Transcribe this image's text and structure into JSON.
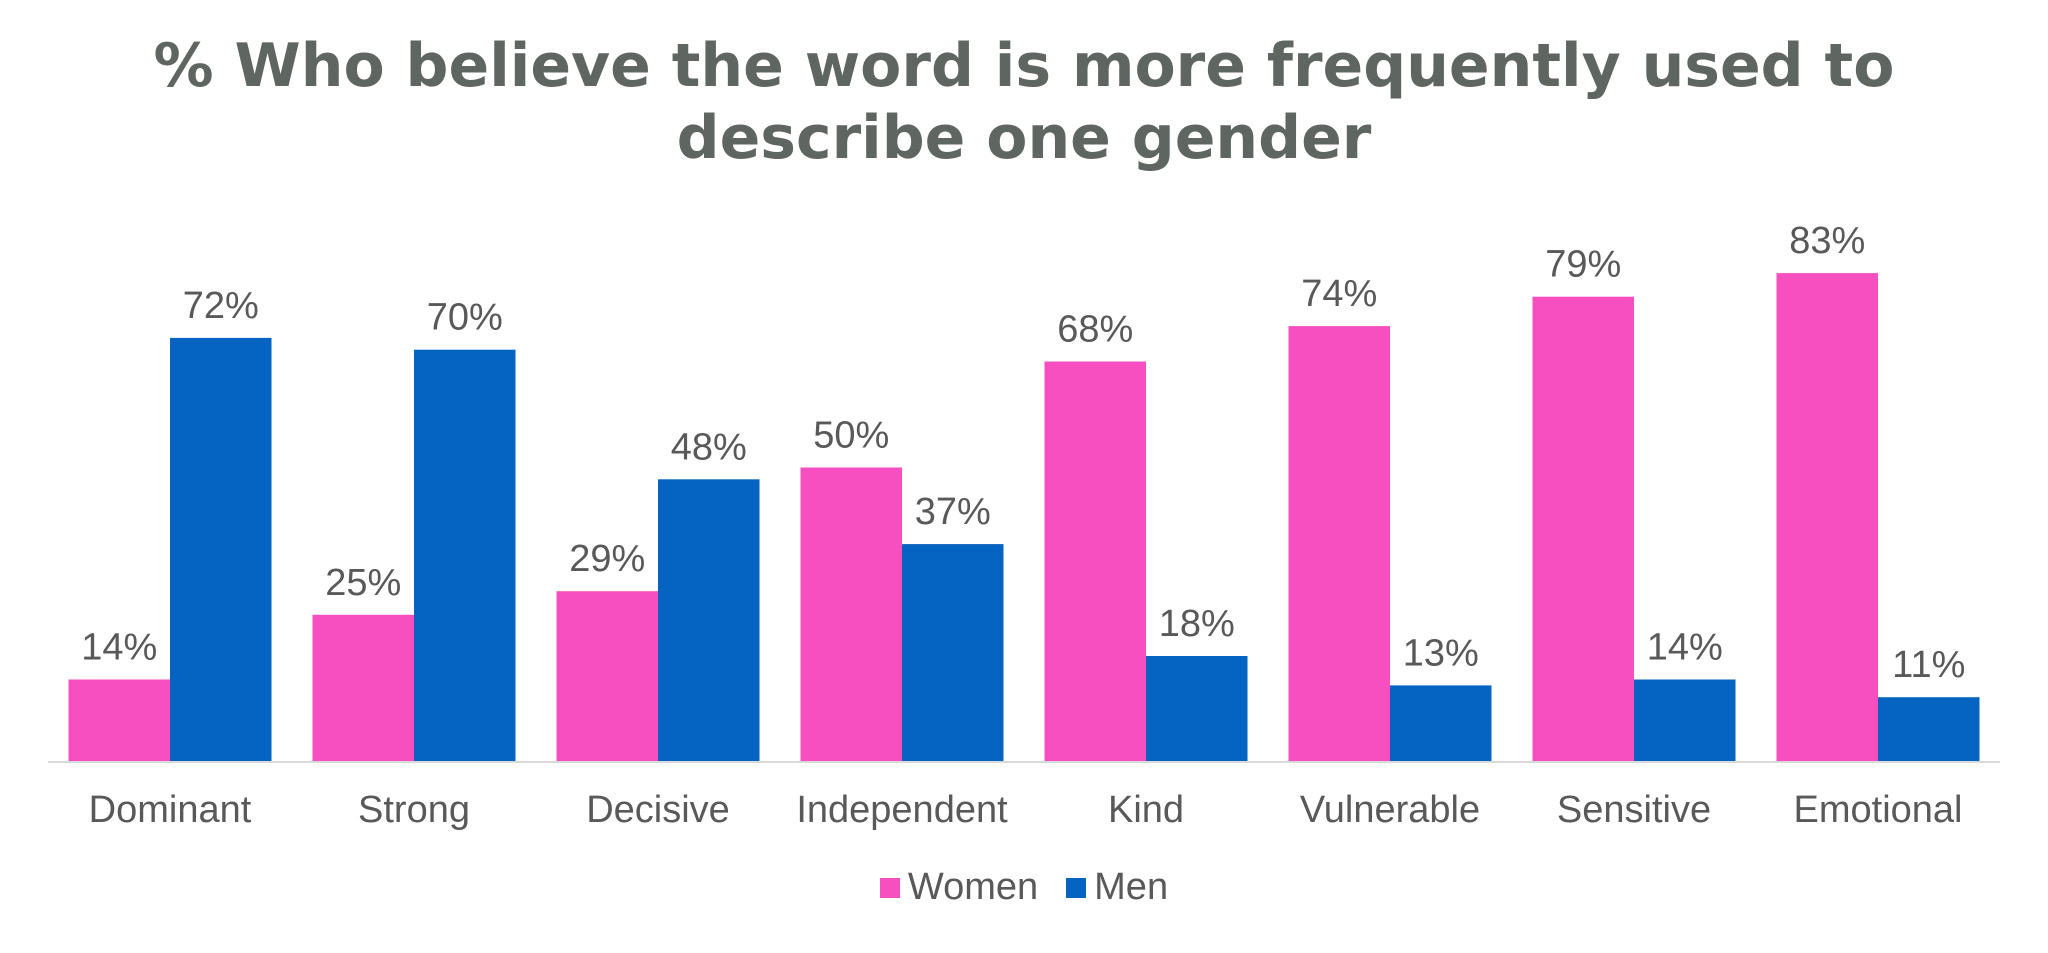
{
  "chart_data": {
    "type": "bar",
    "title_lines": [
      "% Who believe the word is more frequently used to",
      "describe one gender"
    ],
    "categories": [
      "Dominant",
      "Strong",
      "Decisive",
      "Independent",
      "Kind",
      "Vulnerable",
      "Sensitive",
      "Emotional"
    ],
    "series": [
      {
        "name": "Women",
        "color": "#f74fbf",
        "values": [
          14,
          25,
          29,
          50,
          68,
          74,
          79,
          83
        ]
      },
      {
        "name": "Men",
        "color": "#0563c1",
        "values": [
          72,
          70,
          48,
          37,
          18,
          13,
          14,
          11
        ]
      }
    ],
    "value_suffix": "%",
    "ylim": [
      0,
      90
    ],
    "grid": false,
    "legend_position": "bottom"
  }
}
